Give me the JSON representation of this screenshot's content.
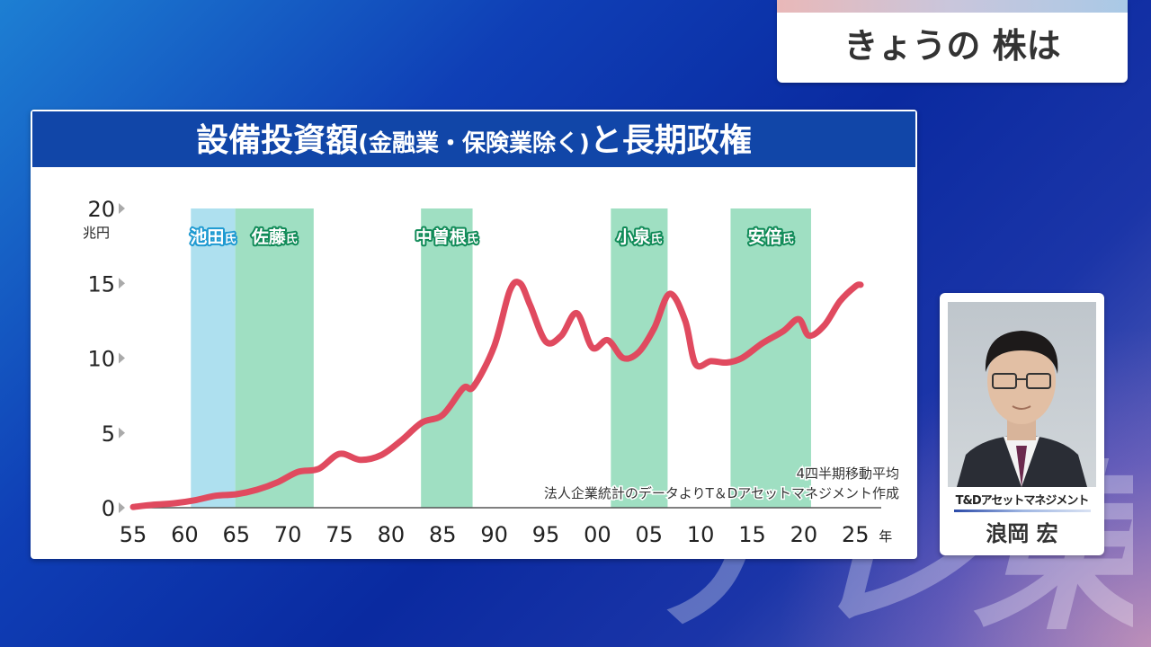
{
  "corner_title": "きょうの 株は",
  "person": {
    "organization": "T&Dアセットマネジメント",
    "name": "浪岡 宏"
  },
  "chart_data": {
    "type": "line",
    "title_main": "設備投資額",
    "title_paren": "(金融業・保険業除く)",
    "title_tail": "と長期政権",
    "yunit": "兆円",
    "xunit": "年",
    "ylim": [
      0,
      20
    ],
    "yticks": [
      0,
      5,
      10,
      15,
      20
    ],
    "xlim": [
      1955,
      2027.5
    ],
    "xticks": [
      {
        "year": 1955,
        "label": "55"
      },
      {
        "year": 1960,
        "label": "60"
      },
      {
        "year": 1965,
        "label": "65"
      },
      {
        "year": 1970,
        "label": "70"
      },
      {
        "year": 1975,
        "label": "75"
      },
      {
        "year": 1980,
        "label": "80"
      },
      {
        "year": 1985,
        "label": "85"
      },
      {
        "year": 1990,
        "label": "90"
      },
      {
        "year": 1995,
        "label": "95"
      },
      {
        "year": 2000,
        "label": "00"
      },
      {
        "year": 2005,
        "label": "05"
      },
      {
        "year": 2010,
        "label": "10"
      },
      {
        "year": 2015,
        "label": "15"
      },
      {
        "year": 2020,
        "label": "20"
      },
      {
        "year": 2025,
        "label": "25"
      }
    ],
    "annotation_lines": [
      "4四半期移動平均",
      "法人企業統計のデータよりT＆Dアセットマネジメント作成"
    ],
    "periods": [
      {
        "name": "池田",
        "suffix": "氏",
        "start": 1960.6,
        "end": 1964.9,
        "color": "#aee0ef",
        "text_color": "#1f9ad1"
      },
      {
        "name": "佐藤",
        "suffix": "氏",
        "start": 1964.9,
        "end": 1972.5,
        "color": "#9fdfc2",
        "text_color": "#0f8a57"
      },
      {
        "name": "中曽根",
        "suffix": "氏",
        "start": 1982.9,
        "end": 1987.9,
        "color": "#9fdfc2",
        "text_color": "#0f8a57"
      },
      {
        "name": "小泉",
        "suffix": "氏",
        "start": 2001.3,
        "end": 2006.8,
        "color": "#9fdfc2",
        "text_color": "#0f8a57"
      },
      {
        "name": "安倍",
        "suffix": "氏",
        "start": 2012.9,
        "end": 2020.7,
        "color": "#9fdfc2",
        "text_color": "#0f8a57"
      }
    ],
    "line_color": "#e04a5f",
    "series": [
      {
        "x": [
          1955,
          1957,
          1959,
          1961,
          1963,
          1965,
          1967,
          1969,
          1971,
          1973,
          1975,
          1977,
          1979,
          1981,
          1983,
          1985,
          1987,
          1988,
          1990,
          1991.5,
          1992.5,
          1993.5,
          1995,
          1996.5,
          1998,
          1999.5,
          2001,
          2002.5,
          2004,
          2005.5,
          2007,
          2008.5,
          2009.5,
          2011,
          2012.5,
          2014,
          2016,
          2018,
          2019.5,
          2020.5,
          2022,
          2023.5,
          2025,
          2025.5
        ],
        "y": [
          0.05,
          0.2,
          0.3,
          0.5,
          0.8,
          0.9,
          1.2,
          1.7,
          2.4,
          2.6,
          3.6,
          3.2,
          3.5,
          4.5,
          5.7,
          6.2,
          8.0,
          8.1,
          10.8,
          14.5,
          15.0,
          13.5,
          11.1,
          11.5,
          13.0,
          10.7,
          11.2,
          10.0,
          10.4,
          12.0,
          14.3,
          12.5,
          9.6,
          9.8,
          9.7,
          10.0,
          11.0,
          11.8,
          12.6,
          11.5,
          12.2,
          13.8,
          14.8,
          14.9
        ]
      }
    ]
  }
}
